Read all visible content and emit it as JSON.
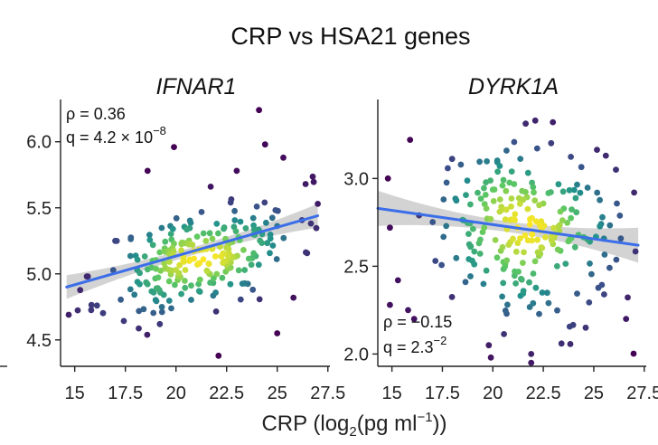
{
  "chart_data": {
    "title": "CRP vs HSA21 genes",
    "xlabel": "CRP (log2(pg ml−1))",
    "xlabel_parts": {
      "pre": "CRP (log",
      "sub": "2",
      "mid": "(pg ml",
      "sup": "−1",
      "post": "))"
    },
    "colormap": [
      "#440154",
      "#3b528b",
      "#21918c",
      "#5ec962",
      "#fde725"
    ],
    "band_color": "#c8c8c8",
    "line_color": "#3b6ee8",
    "panels": [
      {
        "type": "scatter",
        "title": "IFNAR1",
        "xlim": [
          14.3,
          27.6
        ],
        "ylim": [
          4.3,
          6.32
        ],
        "xticks": [
          15,
          17.5,
          20,
          22.5,
          25,
          27.5
        ],
        "xtick_labels": [
          "15",
          "17.5",
          "20",
          "22.5",
          "25",
          "27.5"
        ],
        "yticks": [
          4.5,
          5.0,
          5.5,
          6.0
        ],
        "ytick_labels": [
          "4.5",
          "5.0",
          "5.5",
          "6.0"
        ],
        "annotation": {
          "rho_label": "ρ = 0.36",
          "q_label": "q = 4.2 × 10",
          "q_exp": "−8",
          "position": "top-left"
        },
        "fit": {
          "x": [
            14.6,
            27.0
          ],
          "y": [
            4.9,
            5.44
          ],
          "ci_ends": 0.09,
          "ci_mid": 0.03
        },
        "points_shown": 250,
        "cloud": {
          "cx": 21.2,
          "cy": 5.12,
          "sx": 2.4,
          "sy": 0.19,
          "slope": 0.043,
          "seed": 11
        },
        "outliers": [
          [
            14.7,
            4.69
          ],
          [
            16.1,
            4.76
          ],
          [
            19.9,
            5.96
          ],
          [
            18.6,
            5.78
          ],
          [
            24.1,
            6.24
          ],
          [
            24.4,
            5.98
          ],
          [
            25.3,
            5.88
          ],
          [
            26.4,
            5.68
          ],
          [
            27.0,
            5.53
          ],
          [
            25.8,
            4.82
          ],
          [
            25.0,
            4.55
          ],
          [
            22.1,
            4.38
          ],
          [
            19.2,
            4.62
          ],
          [
            15.6,
            4.98
          ],
          [
            17.0,
            5.25
          ],
          [
            23.0,
            5.78
          ]
        ]
      },
      {
        "type": "scatter",
        "title": "DYRK1A",
        "xlim": [
          14.3,
          27.6
        ],
        "ylim": [
          1.93,
          3.45
        ],
        "xticks": [
          15,
          17.5,
          20,
          22.5,
          25,
          27.5
        ],
        "xtick_labels": [
          "15",
          "17.5",
          "20",
          "22.5",
          "25",
          "27.5"
        ],
        "yticks": [
          2.0,
          2.5,
          3.0
        ],
        "ytick_labels": [
          "2.0",
          "2.5",
          "3.0"
        ],
        "annotation": {
          "rho_label": "ρ = −0.15",
          "q_label": "q = 2.3",
          "q_exp": "−2",
          "position": "bottom-left"
        },
        "fit": {
          "x": [
            14.3,
            27.2
          ],
          "y": [
            2.83,
            2.62
          ],
          "ci_ends": 0.1,
          "ci_mid": 0.03
        },
        "points_shown": 250,
        "cloud": {
          "cx": 21.3,
          "cy": 2.72,
          "sx": 2.4,
          "sy": 0.24,
          "slope": -0.016,
          "seed": 29
        },
        "outliers": [
          [
            14.8,
            3.0
          ],
          [
            15.9,
            3.22
          ],
          [
            22.1,
            3.33
          ],
          [
            14.9,
            2.28
          ],
          [
            15.8,
            2.25
          ],
          [
            16.1,
            2.2
          ],
          [
            19.8,
            2.05
          ],
          [
            19.9,
            1.98
          ],
          [
            21.9,
            1.95
          ],
          [
            21.9,
            2.0
          ],
          [
            23.4,
            2.06
          ],
          [
            24.6,
            2.15
          ],
          [
            26.6,
            2.2
          ],
          [
            27.0,
            2.92
          ],
          [
            26.1,
            3.05
          ],
          [
            25.6,
            3.13
          ],
          [
            14.9,
            2.72
          ],
          [
            15.3,
            2.42
          ]
        ]
      }
    ]
  }
}
